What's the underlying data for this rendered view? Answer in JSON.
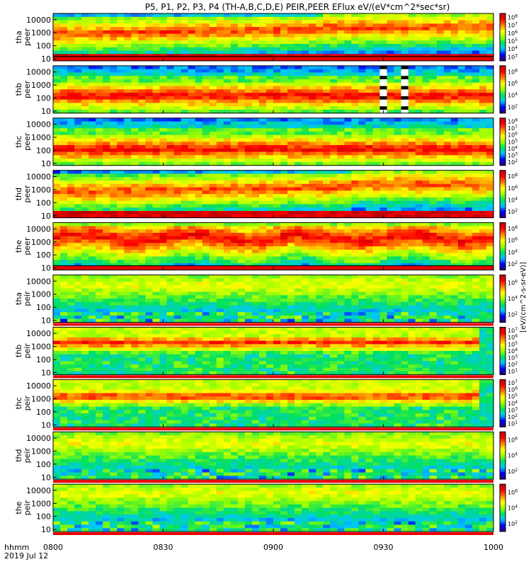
{
  "title": "P5, P1, P2, P3, P4 (TH-A,B,C,D,E) PEIR,PEER EFlux eV/(eV*cm^2*sec*sr)",
  "colors": {
    "background": "#ffffff",
    "colormap": [
      "#2a0070",
      "#0000ff",
      "#00c8ff",
      "#00e060",
      "#a0ff00",
      "#ffff00",
      "#ff8000",
      "#ff0000",
      "#c00000"
    ]
  },
  "chart_data": {
    "type": "heatmap",
    "title": "P5, P1, P2, P3, P4 (TH-A,B,C,D,E) PEIR,PEER EFlux eV/(eV*cm^2*sec*sr)",
    "x_axis": {
      "ticks": [
        "0800",
        "0830",
        "0900",
        "0930",
        "1000"
      ],
      "label_line1": "hhmm",
      "label_line2": "2019 Jul 12",
      "range": [
        "08:00",
        "10:00"
      ]
    },
    "y_scale": "log",
    "colorbar_label": "[eV/(cm^2-s-sr-eV)]",
    "panels": [
      {
        "probe": "tha",
        "species": "peer",
        "yticks": [
          "10",
          "100",
          "1000",
          "10000"
        ],
        "ylim": [
          7,
          30000
        ],
        "cbar_ticks": [
          "10^3",
          "10^4",
          "10^5",
          "10^6",
          "10^7",
          "10^8"
        ],
        "profile": "electron",
        "ridge": 800,
        "high_after": 0.62,
        "low_band": true,
        "missing": []
      },
      {
        "probe": "thb",
        "species": "peer",
        "yticks": [
          "10",
          "100",
          "1000",
          "10000"
        ],
        "ylim": [
          7,
          30000
        ],
        "cbar_ticks": [
          "10^2",
          "10^4",
          "10^6",
          "10^8"
        ],
        "profile": "electron_core",
        "ridge": 150,
        "high_after": 2,
        "low_band": false,
        "missing": [
          [
            0.74,
            0.755
          ],
          [
            0.79,
            0.81
          ]
        ]
      },
      {
        "probe": "thc",
        "species": "peer",
        "yticks": [
          "10",
          "100",
          "1000",
          "10000"
        ],
        "ylim": [
          7,
          30000
        ],
        "cbar_ticks": [
          "10^2",
          "10^3",
          "10^4",
          "10^5",
          "10^6",
          "10^7",
          "10^8"
        ],
        "profile": "electron_core",
        "ridge": 120,
        "high_after": 2,
        "low_band": false,
        "missing": []
      },
      {
        "probe": "thd",
        "species": "peer",
        "yticks": [
          "10",
          "100",
          "1000",
          "10000"
        ],
        "ylim": [
          7,
          30000
        ],
        "cbar_ticks": [
          "10^2",
          "10^4",
          "10^6",
          "10^8"
        ],
        "profile": "electron",
        "ridge": 600,
        "high_after": 0.68,
        "low_band": false,
        "missing": []
      },
      {
        "probe": "the",
        "species": "peer",
        "yticks": [
          "10",
          "100",
          "1000",
          "10000"
        ],
        "ylim": [
          7,
          30000
        ],
        "cbar_ticks": [
          "10^2",
          "10^4",
          "10^6",
          "10^8"
        ],
        "profile": "electron_hot",
        "ridge": 2000,
        "high_after": 2,
        "low_band": true,
        "missing": []
      },
      {
        "probe": "tha",
        "species": "peir",
        "yticks": [
          "10",
          "100",
          "1000",
          "10000"
        ],
        "ylim": [
          7,
          30000
        ],
        "cbar_ticks": [
          "10^2",
          "10^4",
          "10^6"
        ],
        "profile": "ion",
        "ridge": 5000,
        "high_after": 2,
        "low_band": false,
        "missing": []
      },
      {
        "probe": "thb",
        "species": "peir",
        "yticks": [
          "10",
          "100",
          "1000",
          "10000"
        ],
        "ylim": [
          7,
          30000
        ],
        "cbar_ticks": [
          "10^1",
          "10^2",
          "10^3",
          "10^4",
          "10^5",
          "10^6",
          "10^7"
        ],
        "profile": "ion_band",
        "ridge": 2000,
        "high_after": 2,
        "low_band": false,
        "missing": []
      },
      {
        "probe": "thc",
        "species": "peir",
        "yticks": [
          "10",
          "100",
          "1000",
          "10000"
        ],
        "ylim": [
          7,
          30000
        ],
        "cbar_ticks": [
          "10^1",
          "10^2",
          "10^3",
          "10^4",
          "10^5",
          "10^6",
          "10^7"
        ],
        "profile": "ion_band",
        "ridge": 1500,
        "high_after": 2,
        "low_band": false,
        "missing": []
      },
      {
        "probe": "thd",
        "species": "peir",
        "yticks": [
          "10",
          "100",
          "1000",
          "10000"
        ],
        "ylim": [
          7,
          30000
        ],
        "cbar_ticks": [
          "10^2",
          "10^4",
          "10^6"
        ],
        "profile": "ion",
        "ridge": 4000,
        "high_after": 2,
        "low_band": false,
        "missing": []
      },
      {
        "probe": "the",
        "species": "peir",
        "yticks": [
          "10",
          "100",
          "1000",
          "10000"
        ],
        "ylim": [
          7,
          30000
        ],
        "cbar_ticks": [
          "10^2",
          "10^4",
          "10^6"
        ],
        "profile": "ion",
        "ridge": 6000,
        "high_after": 2,
        "low_band": false,
        "missing": []
      }
    ]
  }
}
